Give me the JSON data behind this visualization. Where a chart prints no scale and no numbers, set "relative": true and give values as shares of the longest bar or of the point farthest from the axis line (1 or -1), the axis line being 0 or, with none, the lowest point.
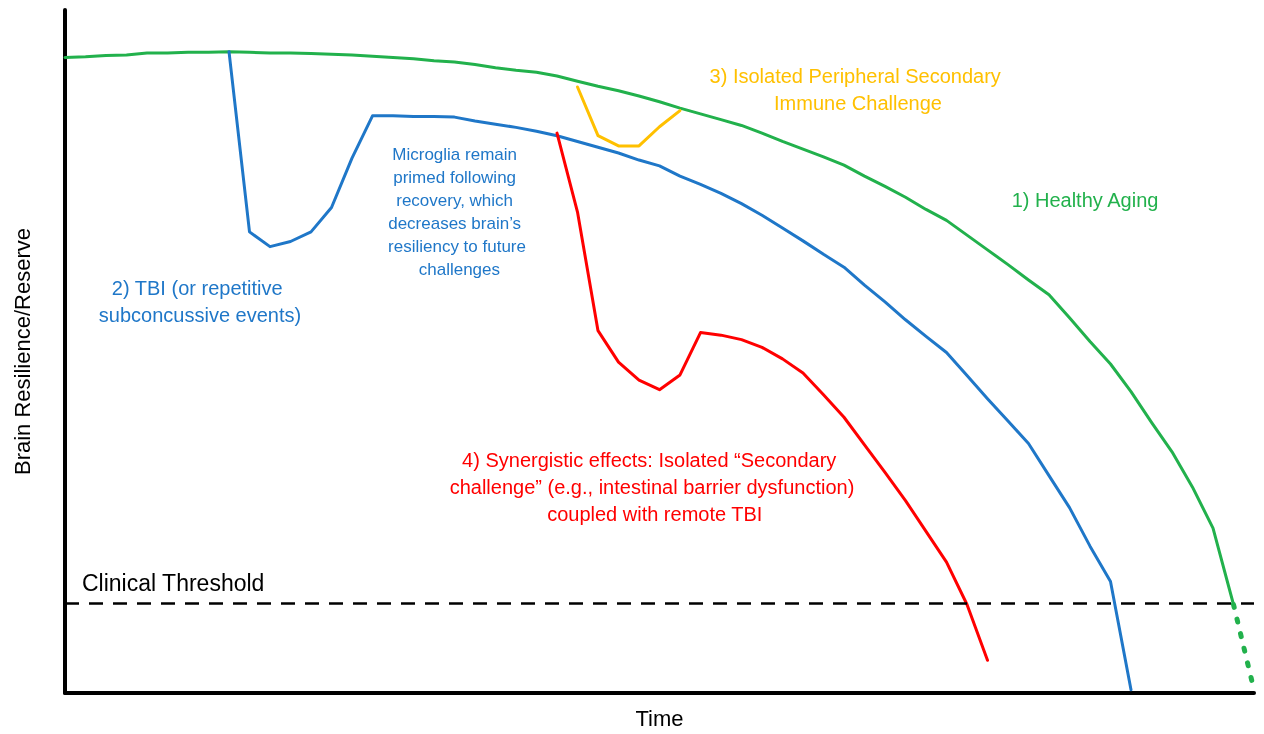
{
  "chart_data": {
    "type": "line",
    "relative": true,
    "xlabel": "Time",
    "ylabel": "Brain Resilience/Reserve",
    "grid": false,
    "legend": false,
    "marker": "none",
    "categories": [
      null,
      null,
      null,
      null,
      null,
      null,
      null,
      null,
      null,
      null,
      null,
      null,
      null,
      null,
      null,
      null,
      null,
      null,
      null,
      null,
      null,
      null,
      null,
      null,
      null,
      null,
      null,
      null,
      null,
      null,
      null,
      null,
      null,
      null,
      null,
      null,
      null,
      null,
      null,
      null,
      null,
      null,
      null,
      null,
      null,
      null,
      null,
      null,
      null,
      null,
      null,
      null,
      null,
      null,
      null,
      null,
      null,
      null,
      null
    ],
    "series": [
      {
        "name": "1) Healthy Aging",
        "color": "#22b14c",
        "line_style": "solid",
        "values": [
          0.991,
          0.992,
          0.994,
          0.995,
          0.998,
          0.998,
          0.999,
          0.999,
          1,
          0.999,
          0.998,
          0.998,
          0.997,
          0.996,
          0.995,
          0.993,
          0.991,
          0.989,
          0.986,
          0.984,
          0.98,
          0.975,
          0.971,
          0.968,
          0.962,
          0.954,
          0.946,
          0.939,
          0.931,
          0.922,
          0.912,
          0.903,
          0.894,
          0.885,
          0.873,
          0.86,
          0.848,
          0.836,
          0.823,
          0.806,
          0.79,
          0.773,
          0.754,
          0.737,
          0.714,
          0.691,
          0.668,
          0.644,
          0.621,
          0.585,
          0.548,
          0.513,
          0.47,
          0.422,
          0.376,
          0.321,
          0.257,
          0.138,
          null
        ]
      },
      {
        "name": "2) TBI (or repetitive subconcussive events)",
        "color": "#1f77c8",
        "line_style": "solid",
        "values": [
          null,
          null,
          null,
          null,
          null,
          null,
          null,
          null,
          1,
          0.719,
          0.696,
          0.704,
          0.719,
          0.757,
          0.834,
          0.9,
          0.9,
          0.899,
          0.899,
          0.898,
          0.892,
          0.887,
          0.882,
          0.876,
          0.869,
          0.86,
          0.851,
          0.842,
          0.831,
          0.822,
          0.806,
          0.793,
          0.779,
          0.763,
          0.745,
          0.725,
          0.705,
          0.684,
          0.664,
          0.636,
          0.61,
          0.582,
          0.556,
          0.531,
          0.495,
          0.459,
          0.424,
          0.389,
          0.339,
          0.289,
          0.229,
          0.174,
          0.005,
          null,
          null,
          null,
          null,
          null,
          null
        ]
      },
      {
        "name": "3) Isolated Peripheral Secondary Immune Challenge",
        "color": "#ffc000",
        "line_style": "solid",
        "values": [
          null,
          null,
          null,
          null,
          null,
          null,
          null,
          null,
          null,
          null,
          null,
          null,
          null,
          null,
          null,
          null,
          null,
          null,
          null,
          null,
          null,
          null,
          null,
          null,
          null,
          0.945,
          0.869,
          0.853,
          0.853,
          0.883,
          0.908,
          null,
          null,
          null,
          null,
          null,
          null,
          null,
          null,
          null,
          null,
          null,
          null,
          null,
          null,
          null,
          null,
          null,
          null,
          null,
          null,
          null,
          null,
          null,
          null,
          null,
          null,
          null,
          null
        ]
      },
      {
        "name": "4) Synergistic effects: Isolated “Secondary challenge” (e.g., intestinal barrier dysfunction) coupled with remote TBI",
        "color": "#ff0000",
        "line_style": "solid",
        "values": [
          null,
          null,
          null,
          null,
          null,
          null,
          null,
          null,
          null,
          null,
          null,
          null,
          null,
          null,
          null,
          null,
          null,
          null,
          null,
          null,
          null,
          null,
          null,
          null,
          0.873,
          0.75,
          0.565,
          0.516,
          0.488,
          0.473,
          0.496,
          0.562,
          0.558,
          0.551,
          0.539,
          0.521,
          0.499,
          0.465,
          0.43,
          0.387,
          0.344,
          0.3,
          0.252,
          0.204,
          0.138,
          0.051,
          null,
          null,
          null,
          null,
          null,
          null,
          null,
          null,
          null,
          null,
          null,
          null,
          null
        ]
      },
      {
        "color": "#22b14c",
        "line_style": "dotted",
        "values": [
          null,
          null,
          null,
          null,
          null,
          null,
          null,
          null,
          null,
          null,
          null,
          null,
          null,
          null,
          null,
          null,
          null,
          null,
          null,
          null,
          null,
          null,
          null,
          null,
          null,
          null,
          null,
          null,
          null,
          null,
          null,
          null,
          null,
          null,
          null,
          null,
          null,
          null,
          null,
          null,
          null,
          null,
          null,
          null,
          null,
          null,
          null,
          null,
          null,
          null,
          null,
          null,
          null,
          null,
          null,
          null,
          null,
          0.138,
          0.005
        ]
      }
    ],
    "ref_lines": [
      {
        "axis": "y",
        "value": 0.138,
        "label": "Clinical Threshold",
        "color": "#000000",
        "line_style": "dashed"
      }
    ],
    "annotations": [
      "Microglia remain primed following recovery, which decreases brain’s resiliency to future challenges"
    ]
  }
}
